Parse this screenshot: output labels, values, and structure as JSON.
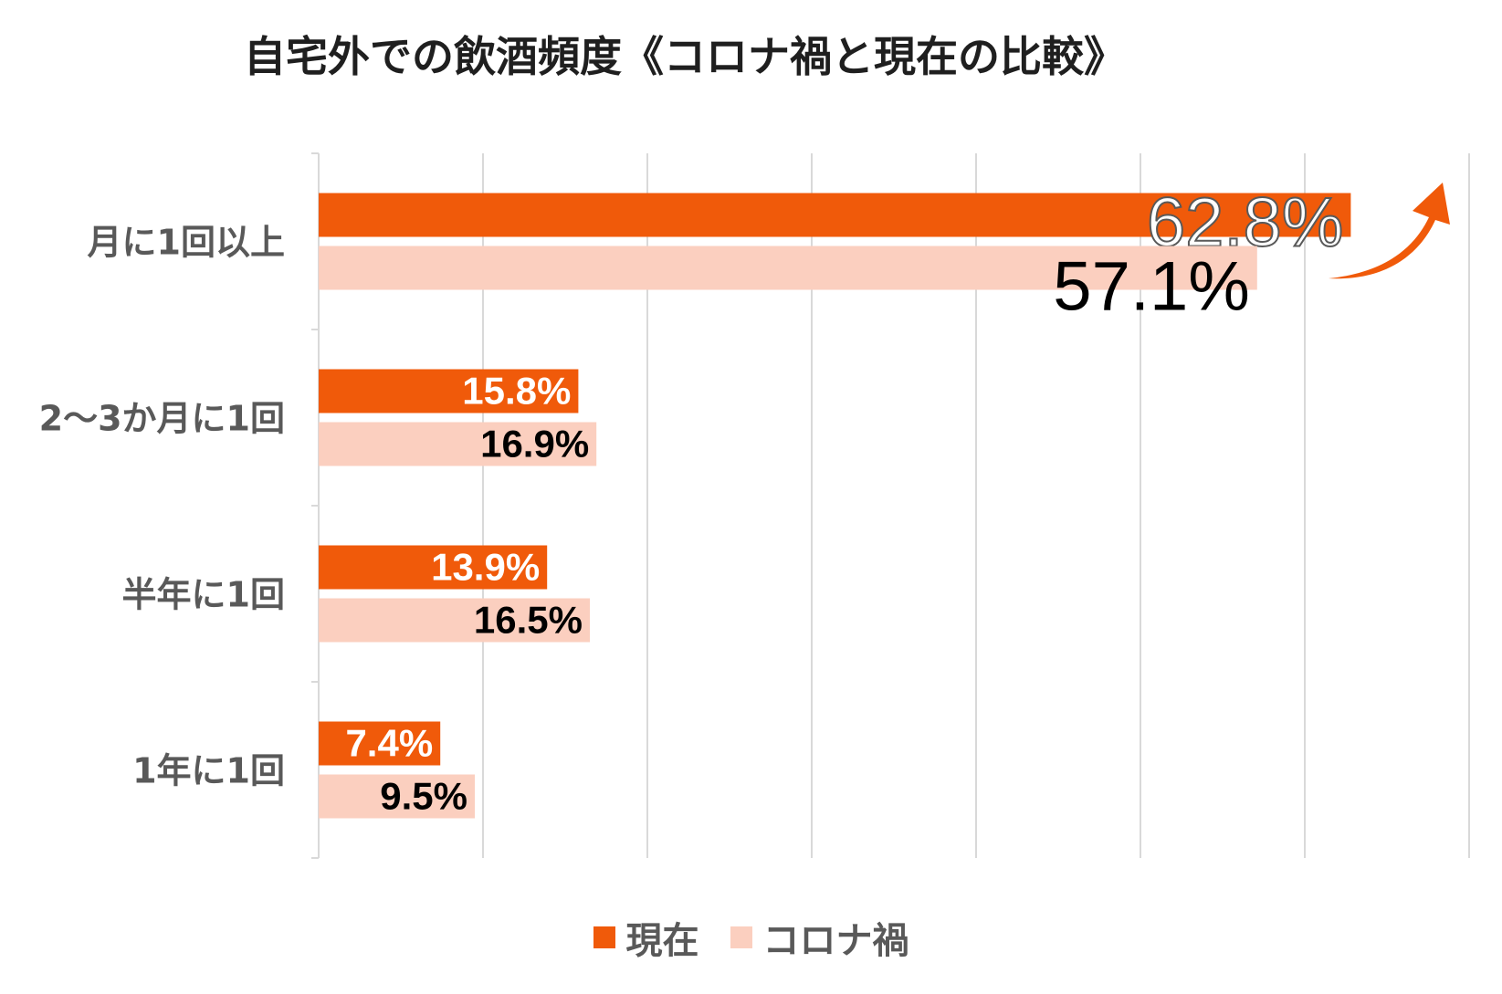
{
  "chart_data": {
    "type": "bar",
    "orientation": "horizontal",
    "title": "自宅外での飲酒頻度《コロナ禍と現在の比較》",
    "categories": [
      "月に1回以上",
      "2～3か月に1回",
      "半年に1回",
      "1年に1回"
    ],
    "series": [
      {
        "name": "現在",
        "color": "#f05a0a",
        "values": [
          62.8,
          15.8,
          13.9,
          7.4
        ],
        "labels": [
          "62.8%",
          "15.8%",
          "13.9%",
          "7.4%"
        ]
      },
      {
        "name": "コロナ禍",
        "color": "#fbcfbf",
        "values": [
          57.1,
          16.9,
          16.5,
          9.5
        ],
        "labels": [
          "57.1%",
          "16.9%",
          "16.5%",
          "9.5%"
        ]
      }
    ],
    "xlim": [
      0,
      70
    ],
    "grid": true,
    "legend_position": "bottom",
    "annotation": "up-arrow-icon"
  }
}
